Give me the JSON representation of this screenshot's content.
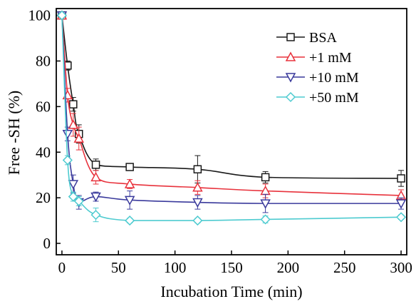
{
  "chart_data": {
    "type": "line",
    "xlabel": "Incubation Time (min)",
    "ylabel": "Free -SH (%)",
    "xlim": [
      -5,
      305
    ],
    "ylim": [
      -5,
      103
    ],
    "xticks": [
      0,
      50,
      100,
      150,
      200,
      250,
      300
    ],
    "yticks": [
      0,
      20,
      40,
      60,
      80,
      100
    ],
    "grid": false,
    "legend_position": "top-right",
    "series": [
      {
        "name": "BSA",
        "color": "#1a1a1a",
        "marker": "square",
        "x": [
          0,
          5,
          10,
          15,
          30,
          60,
          120,
          180,
          300
        ],
        "y": [
          100,
          78,
          61,
          48,
          34.5,
          33.5,
          32.5,
          29,
          28.5
        ],
        "err": [
          0,
          2,
          3,
          4,
          2.5,
          1.5,
          6,
          2.5,
          3.5
        ]
      },
      {
        "name": "+1 mM",
        "color": "#e8323c",
        "marker": "triangle-up",
        "x": [
          0,
          5,
          10,
          15,
          30,
          60,
          120,
          180,
          300
        ],
        "y": [
          100,
          65,
          52,
          46,
          29,
          26,
          24.5,
          23,
          21
        ],
        "err": [
          0,
          3,
          5,
          5,
          3,
          2,
          3,
          3,
          2.5
        ]
      },
      {
        "name": "+10 mM",
        "color": "#3a3a9c",
        "marker": "triangle-down",
        "x": [
          0,
          5,
          10,
          15,
          30,
          60,
          120,
          180,
          300
        ],
        "y": [
          100,
          48,
          26,
          18,
          20.5,
          19,
          18,
          17.5,
          17.5
        ],
        "err": [
          0,
          3,
          4,
          3,
          2,
          4,
          3,
          4,
          2.5
        ]
      },
      {
        "name": "+50 mM",
        "color": "#4ecbd0",
        "marker": "diamond",
        "x": [
          0,
          5,
          10,
          15,
          30,
          60,
          120,
          180,
          300
        ],
        "y": [
          100,
          36.5,
          20.5,
          18.5,
          12.5,
          10,
          10,
          10.5,
          11.5
        ],
        "err": [
          0,
          2,
          2,
          2,
          3,
          1,
          1,
          1.5,
          1
        ]
      }
    ]
  }
}
